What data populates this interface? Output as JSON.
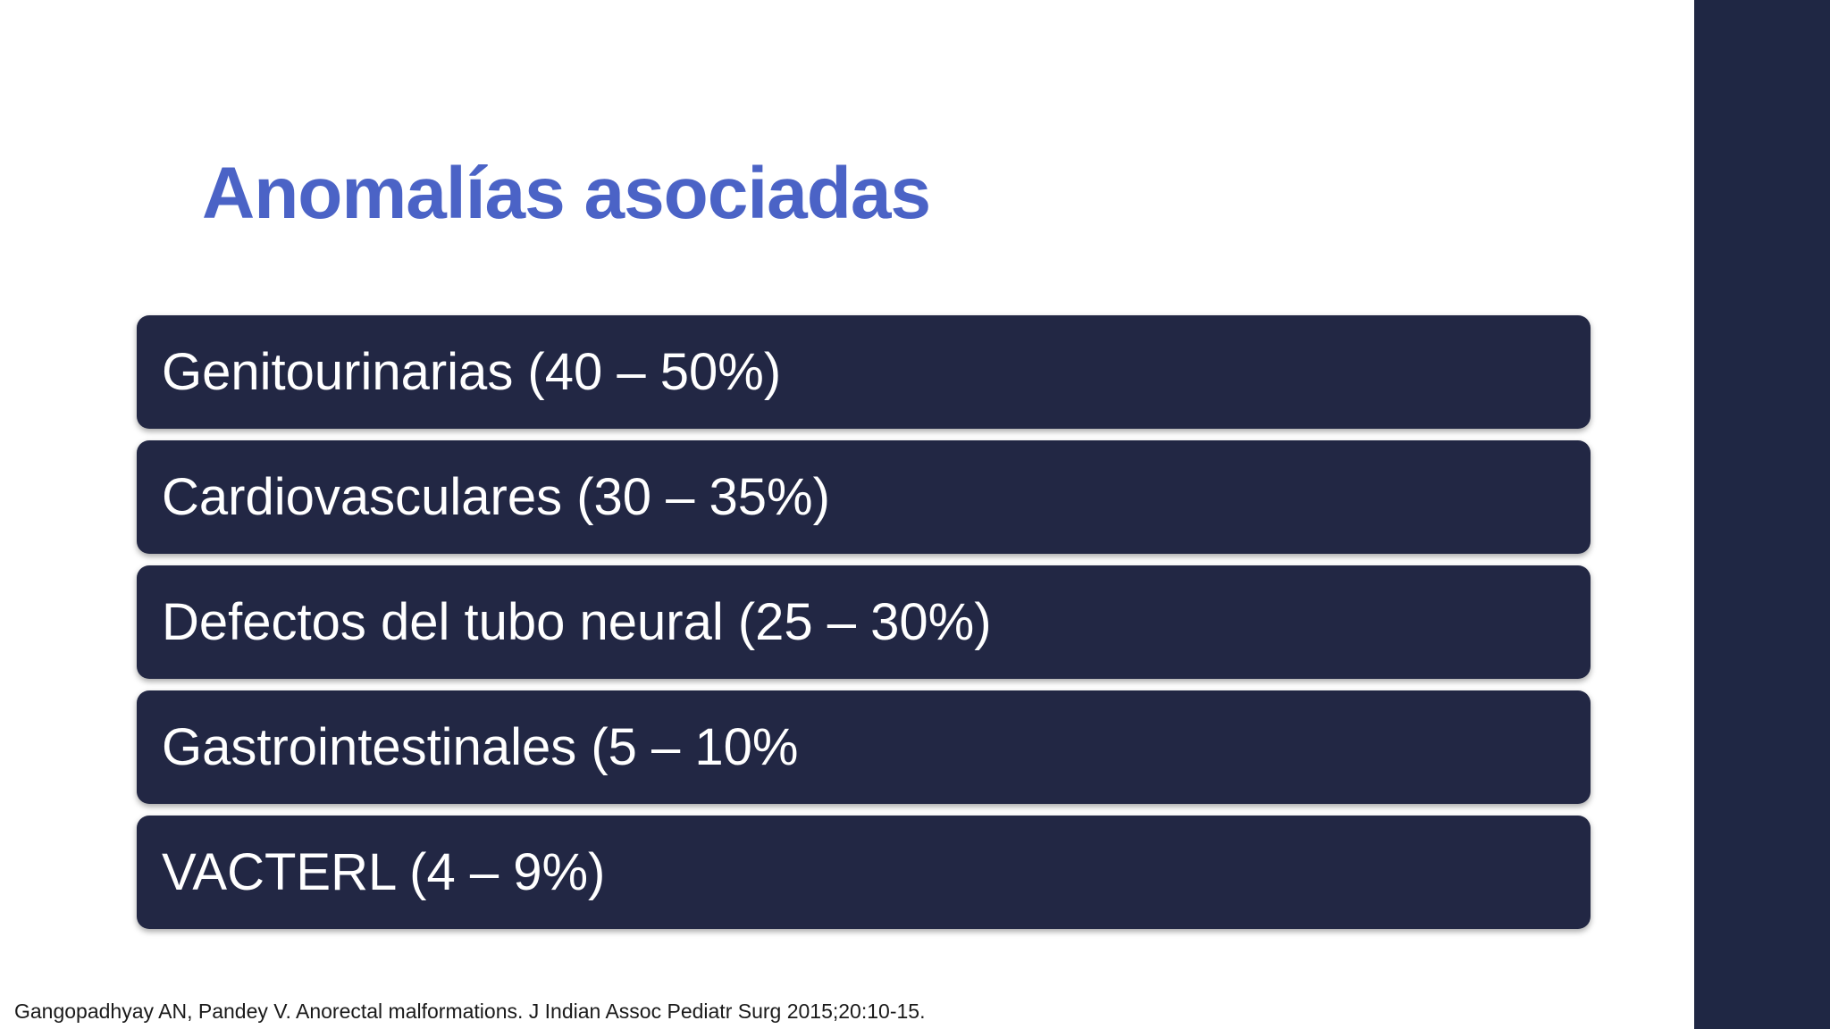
{
  "slide": {
    "title": "Anomalías asociadas",
    "items": [
      {
        "label": "Genitourinarias (40 – 50%)"
      },
      {
        "label": "Cardiovasculares (30 – 35%)"
      },
      {
        "label": "Defectos del tubo neural (25 – 30%)"
      },
      {
        "label": "Gastrointestinales (5 – 10%"
      },
      {
        "label": "VACTERL (4 – 9%)"
      }
    ],
    "citation": "Gangopadhyay AN, Pandey V. Anorectal malformations. J Indian Assoc Pediatr Surg 2015;20:10-15."
  },
  "colors": {
    "title": "#4b63c6",
    "item_background": "#222744",
    "item_text": "#ffffff",
    "side_band": "#1f2744",
    "background": "#ffffff"
  }
}
